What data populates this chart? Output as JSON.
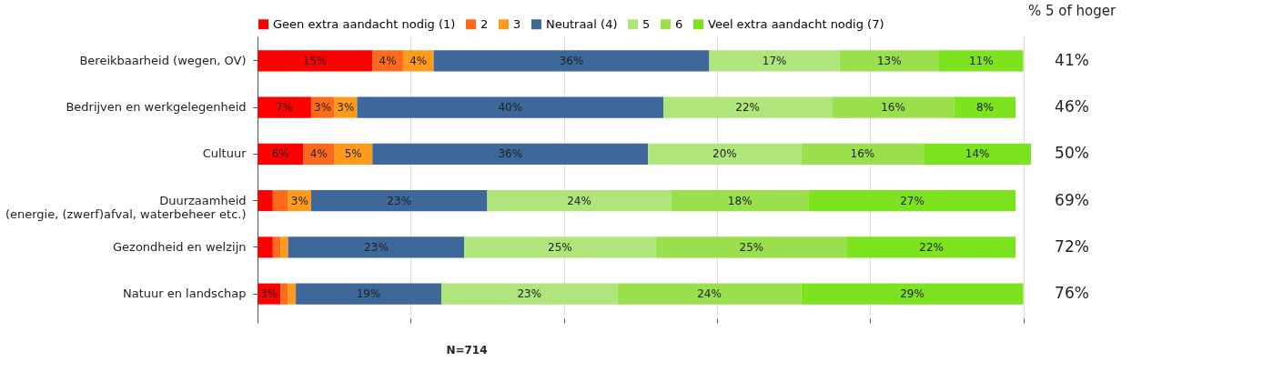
{
  "chart_data": {
    "type": "bar",
    "orientation": "horizontal",
    "stacked": true,
    "categories": [
      "Bereikbaarheid (wegen, OV)",
      "Bedrijven en werkgelegenheid",
      "Cultuur",
      "Duurzaamheid\n(energie, (zwerf)afval, waterbeheer etc.)",
      "Gezondheid en welzijn",
      "Natuur en landschap"
    ],
    "series": [
      {
        "name": "Geen extra aandacht nodig (1)",
        "color": "#ff0000",
        "values": [
          15,
          7,
          6,
          2,
          2,
          3
        ],
        "value_labels": [
          "15%",
          "7%",
          "6%",
          null,
          null,
          "3%"
        ]
      },
      {
        "name": "2",
        "color": "#ff6a1a",
        "values": [
          4,
          3,
          4,
          2,
          1,
          1
        ],
        "value_labels": [
          "4%",
          "3%",
          "4%",
          null,
          null,
          null
        ]
      },
      {
        "name": "3",
        "color": "#ff9a1a",
        "values": [
          4,
          3,
          5,
          3,
          1,
          1
        ],
        "value_labels": [
          "4%",
          "3%",
          "5%",
          "3%",
          null,
          null
        ]
      },
      {
        "name": "Neutraal (4)",
        "color": "#3d6899",
        "values": [
          36,
          40,
          36,
          23,
          23,
          19
        ],
        "value_labels": [
          "36%",
          "40%",
          "36%",
          "23%",
          "23%",
          "19%"
        ]
      },
      {
        "name": "5",
        "color": "#b0e57c",
        "values": [
          17,
          22,
          20,
          24,
          25,
          23
        ],
        "value_labels": [
          "17%",
          "22%",
          "20%",
          "24%",
          "25%",
          "23%"
        ]
      },
      {
        "name": "6",
        "color": "#99e04c",
        "values": [
          13,
          16,
          16,
          18,
          25,
          24
        ],
        "value_labels": [
          "13%",
          "16%",
          "16%",
          "18%",
          "25%",
          "24%"
        ]
      },
      {
        "name": "Veel extra aandacht nodig (7)",
        "color": "#7ce31e",
        "values": [
          11,
          8,
          14,
          27,
          22,
          29
        ],
        "value_labels": [
          "11%",
          "8%",
          "14%",
          "27%",
          "22%",
          "29%"
        ]
      }
    ],
    "annotations": [
      "% 5 of hoger",
      "41%",
      "46%",
      "50%",
      "69%",
      "72%",
      "76%",
      "N=714"
    ],
    "xlim": [
      0,
      101
    ],
    "xticks": [
      {
        "value": 0,
        "label": null
      },
      {
        "value": 20,
        "label": null
      },
      {
        "value": 40,
        "label": null
      },
      {
        "value": 60,
        "label": null
      },
      {
        "value": 80,
        "label": null
      },
      {
        "value": 100,
        "label": null
      }
    ],
    "grid": "x",
    "tick_labels": "y",
    "legend": "top"
  }
}
